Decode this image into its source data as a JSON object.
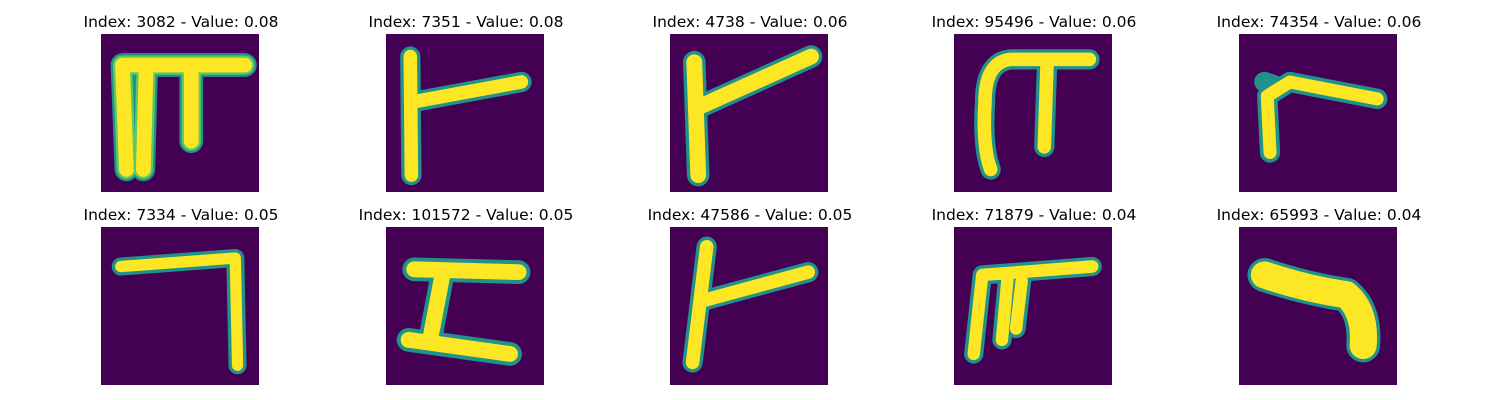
{
  "colors": {
    "background": "#440154",
    "glyph_edge": "#21918c",
    "glyph_mid": "#5ec962",
    "glyph_core": "#fde725"
  },
  "panels": [
    {
      "title": "Index: 3082 - Value: 0.08",
      "glyph": "pi-shape-glyph"
    },
    {
      "title": "Index: 7351 - Value: 0.08",
      "glyph": "vertical-with-diagonal-glyph"
    },
    {
      "title": "Index: 4738 - Value: 0.06",
      "glyph": "vertical-with-long-diagonal-glyph"
    },
    {
      "title": "Index: 95496 - Value: 0.06",
      "glyph": "arch-shape-glyph"
    },
    {
      "title": "Index: 74354 - Value: 0.06",
      "glyph": "hook-shape-glyph"
    },
    {
      "title": "Index: 7334 - Value: 0.05",
      "glyph": "reverse-l-shape-glyph"
    },
    {
      "title": "Index: 101572 - Value: 0.05",
      "glyph": "z-shape-glyph"
    },
    {
      "title": "Index: 47586 - Value: 0.05",
      "glyph": "vertical-with-diagonal-glyph"
    },
    {
      "title": "Index: 71879 - Value: 0.04",
      "glyph": "double-leg-shape-glyph"
    },
    {
      "title": "Index: 65993 - Value: 0.04",
      "glyph": "boomerang-shape-glyph"
    }
  ]
}
